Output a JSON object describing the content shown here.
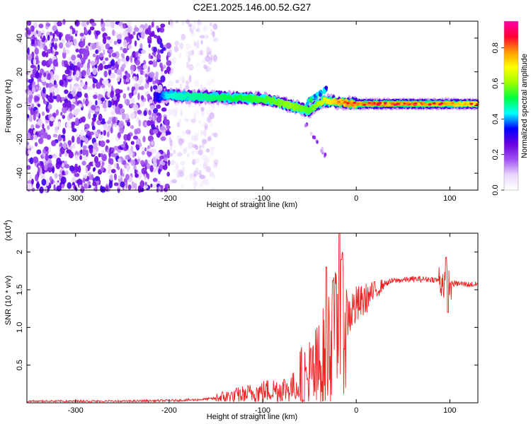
{
  "figure": {
    "title": "C2E1.2025.146.00.52.G27"
  },
  "chart_data": [
    {
      "type": "heatmap",
      "title": "C2E1.2025.146.00.52.G27",
      "xlabel": "Height of straight line (km)",
      "ylabel": "Frequency (Hz)",
      "xlim": [
        -352,
        130
      ],
      "ylim": [
        -50,
        50
      ],
      "xticks": [
        -300,
        -200,
        -100,
        0,
        100
      ],
      "yticks": [
        -40,
        -20,
        0,
        20,
        40
      ],
      "colorbar": {
        "label": "Normalized spectral amplitude",
        "range": [
          0.0,
          0.95
        ],
        "ticks": [
          "0.0",
          "0.2",
          "0.4",
          "0.6",
          "0.8"
        ],
        "colors": [
          "#ffffff",
          "#e9d6fb",
          "#a050f0",
          "#6a00e0",
          "#0000ff",
          "#00ffff",
          "#00ff40",
          "#a0ff00",
          "#ffff00",
          "#ff9900",
          "#ff0033",
          "#ff00aa"
        ]
      },
      "ridge": {
        "x": [
          -215,
          -200,
          -150,
          -100,
          -70,
          -50,
          -35,
          -20,
          0,
          50,
          100,
          130
        ],
        "frequency": [
          5,
          6,
          5,
          4,
          0,
          -3,
          3,
          2,
          1,
          1,
          1,
          1
        ],
        "amplitude": [
          0.3,
          0.45,
          0.5,
          0.55,
          0.6,
          0.55,
          0.65,
          0.75,
          0.8,
          0.8,
          0.75,
          0.7
        ]
      },
      "noise_region": {
        "x_from": -352,
        "x_to": -150,
        "dense_until": -200
      }
    },
    {
      "type": "line",
      "xlabel": "Height of straight line (km)",
      "ylabel": "SNR (10 * v/v)",
      "y_multiplier": "(x10^4)",
      "xlim": [
        -352,
        130
      ],
      "ylim": [
        0,
        2.25
      ],
      "xticks": [
        -300,
        -200,
        -100,
        0,
        100
      ],
      "yticks": [
        0.5,
        1.0,
        1.5,
        2.0
      ],
      "series": [
        {
          "color": "#ee2222",
          "x": [
            -352,
            -300,
            -250,
            -200,
            -170,
            -150,
            -130,
            -110,
            -100,
            -90,
            -80,
            -70,
            -60,
            -50,
            -40,
            -35,
            -30,
            -25,
            -20,
            -15,
            -10,
            -5,
            0,
            5,
            10,
            20,
            30,
            40,
            50,
            60,
            80,
            90,
            95,
            100,
            110,
            120,
            130
          ],
          "y": [
            0.02,
            0.02,
            0.02,
            0.03,
            0.04,
            0.06,
            0.09,
            0.13,
            0.15,
            0.17,
            0.18,
            0.2,
            0.24,
            0.3,
            0.42,
            0.55,
            0.75,
            0.85,
            0.95,
            1.05,
            1.15,
            1.22,
            1.28,
            1.32,
            1.38,
            1.48,
            1.58,
            1.62,
            1.63,
            1.64,
            1.64,
            1.62,
            1.6,
            1.58,
            1.58,
            1.57,
            1.57
          ],
          "spikes": [
            {
              "x": -32,
              "y": 1.8
            },
            {
              "x": -25,
              "y": 1.62
            },
            {
              "x": -18,
              "y": 2.25
            },
            {
              "x": -16,
              "y": 1.9
            },
            {
              "x": 96,
              "y": 1.93
            },
            {
              "x": 98,
              "y": 1.2
            }
          ]
        }
      ]
    }
  ]
}
